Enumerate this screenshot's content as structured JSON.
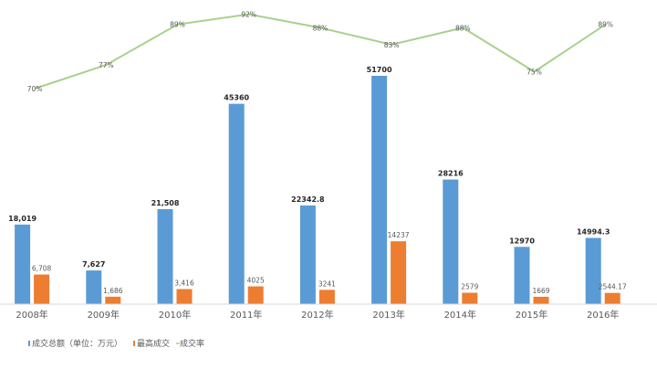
{
  "chart_data": {
    "type": "bar",
    "categories": [
      "2008年",
      "2009年",
      "2010年",
      "2011年",
      "2012年",
      "2013年",
      "2014年",
      "2015年",
      "2016年"
    ],
    "series": [
      {
        "name": "成交总额（单位：万元）",
        "values": [
          18019,
          7627,
          21508,
          45360,
          22342.8,
          51700,
          28216,
          12970,
          14994.3
        ],
        "labels": [
          "18,019",
          "7,627",
          "21,508",
          "45360",
          "22342.8",
          "51700",
          "28216",
          "12970",
          "14994.3"
        ],
        "color": "#5b9bd5"
      },
      {
        "name": "最高成交",
        "values": [
          6708,
          1686,
          3416,
          4025,
          3241,
          14237,
          2579,
          1669,
          2544.17
        ],
        "labels": [
          "6,708",
          "1,686",
          "3,416",
          "4025",
          "3241",
          "14237",
          "2579",
          "1669",
          "2544.17"
        ],
        "color": "#ed7d31"
      },
      {
        "name": "成交率",
        "type": "line",
        "values": [
          70,
          77,
          89,
          92,
          88,
          83,
          88,
          75,
          89
        ],
        "labels": [
          "70%",
          "77%",
          "89%",
          "92%",
          "88%",
          "83%",
          "88%",
          "75%",
          "89%"
        ],
        "color": "#a9d18e"
      }
    ],
    "legend_position": "bottom-left",
    "grid": false
  }
}
